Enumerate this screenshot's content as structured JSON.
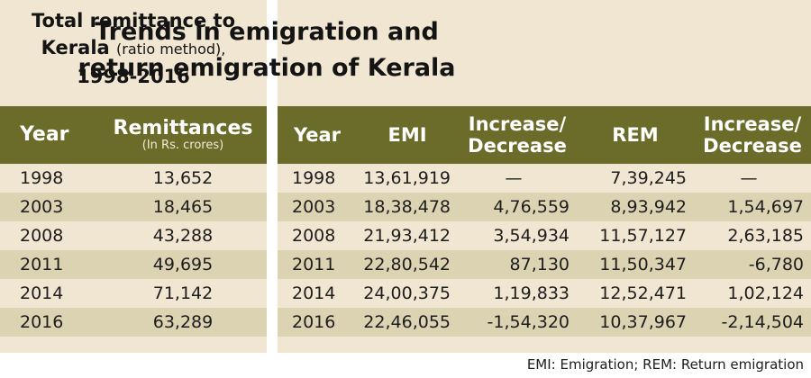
{
  "left": {
    "title_line1": "Total remittance to",
    "title_kerala": "Kerala",
    "title_sub": "(ratio method),",
    "title_years": "1998-2016",
    "headers": {
      "year": "Year",
      "remittances": "Remittances",
      "unit": "(In Rs. crores)"
    },
    "rows": [
      {
        "year": "1998",
        "value": "13,652"
      },
      {
        "year": "2003",
        "value": "18,465"
      },
      {
        "year": "2008",
        "value": "43,288"
      },
      {
        "year": "2011",
        "value": "49,695"
      },
      {
        "year": "2014",
        "value": "71,142"
      },
      {
        "year": "2016",
        "value": "63,289"
      }
    ]
  },
  "right": {
    "title_line1": "Trends in emigration and",
    "title_line2": "return emigration of Kerala",
    "headers": {
      "year": "Year",
      "emi": "EMI",
      "inc1_a": "Increase/",
      "inc1_b": "Decrease",
      "rem": "REM",
      "inc2_a": "Increase/",
      "inc2_b": "Decrease"
    },
    "rows": [
      {
        "year": "1998",
        "emi": "13,61,919",
        "emi_change": "—",
        "rem": "7,39,245",
        "rem_change": "—"
      },
      {
        "year": "2003",
        "emi": "18,38,478",
        "emi_change": "4,76,559",
        "rem": "8,93,942",
        "rem_change": "1,54,697"
      },
      {
        "year": "2008",
        "emi": "21,93,412",
        "emi_change": "3,54,934",
        "rem": "11,57,127",
        "rem_change": "2,63,185"
      },
      {
        "year": "2011",
        "emi": "22,80,542",
        "emi_change": "87,130",
        "rem": "11,50,347",
        "rem_change": "-6,780"
      },
      {
        "year": "2014",
        "emi": "24,00,375",
        "emi_change": "1,19,833",
        "rem": "12,52,471",
        "rem_change": "1,02,124"
      },
      {
        "year": "2016",
        "emi": "22,46,055",
        "emi_change": "-1,54,320",
        "rem": "10,37,967",
        "rem_change": "-2,14,504"
      }
    ]
  },
  "footnote": "EMI: Emigration; REM: Return emigration"
}
